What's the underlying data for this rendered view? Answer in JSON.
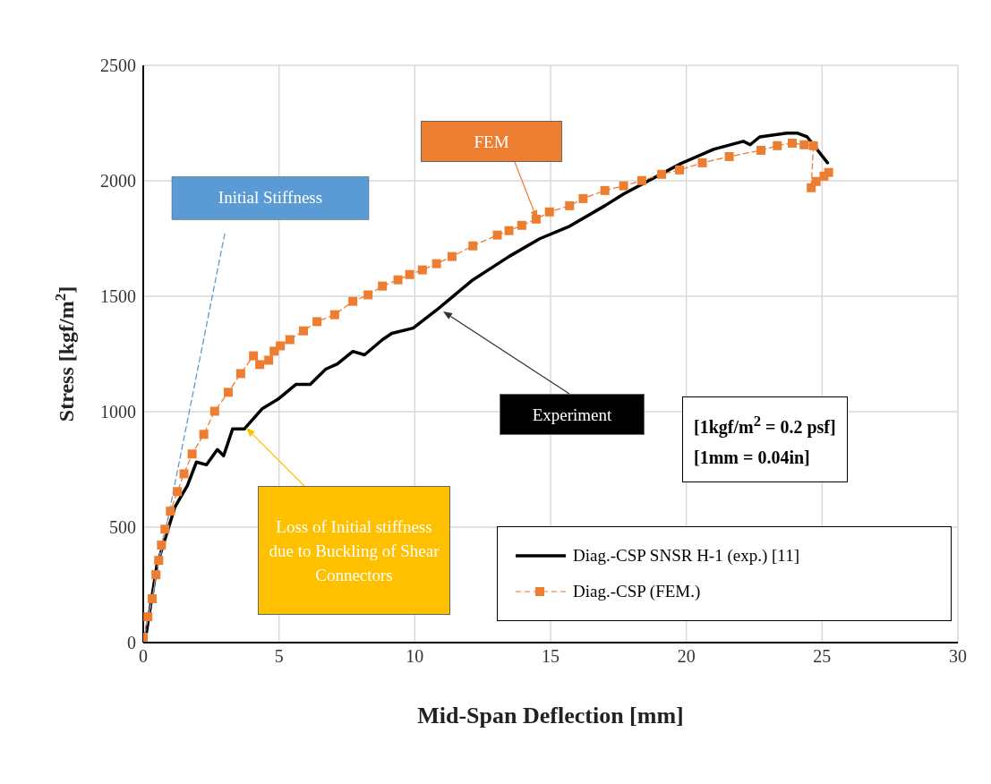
{
  "chart_data": {
    "type": "line",
    "xlabel": "Mid-Span Deflection [mm]",
    "ylabel": "Stress  [kgf/m$^{2}$]",
    "xlim": [
      0,
      30
    ],
    "xticks": [
      0,
      5,
      10,
      15,
      20,
      25,
      30
    ],
    "ylim": [
      0,
      2500
    ],
    "yticks": [
      0,
      500,
      1000,
      1500,
      2000,
      2500
    ],
    "grid": true,
    "legend": "bottom right",
    "series": [
      {
        "name": "Diag.-CSP SNSR H-1 (exp.) [11]",
        "color": "#000000",
        "marker": "none",
        "line_style": "solid",
        "x": [
          0,
          0.07,
          0.5,
          1.17,
          1.63,
          1.96,
          2.33,
          2.73,
          2.96,
          3.29,
          3.72,
          4.39,
          4.95,
          5.62,
          6.15,
          6.72,
          7.15,
          7.72,
          8.15,
          8.81,
          9.15,
          9.94,
          10.8,
          12.14,
          13.47,
          14.6,
          15.7,
          17.0,
          17.69,
          19.79,
          21.0,
          22.1,
          22.35,
          22.7,
          23.7,
          24.1,
          24.45,
          25.2
        ],
        "values": [
          0,
          8,
          333,
          588,
          681,
          782,
          770,
          836,
          809,
          925,
          925,
          1014,
          1053,
          1118,
          1118,
          1184,
          1207,
          1261,
          1246,
          1312,
          1339,
          1362,
          1440,
          1571,
          1672,
          1749,
          1803,
          1892,
          1943,
          2074,
          2136,
          2171,
          2156,
          2190,
          2206,
          2206,
          2190,
          2078
        ]
      },
      {
        "name": "Diag.-CSP (FEM.)",
        "color": "#ed7d31",
        "marker": "square",
        "line_style": "dashed",
        "x": [
          0,
          0.17,
          0.33,
          0.47,
          0.57,
          0.67,
          0.8,
          1.0,
          1.26,
          1.5,
          1.8,
          2.23,
          2.63,
          3.13,
          3.59,
          4.06,
          4.29,
          4.62,
          4.82,
          5.05,
          5.4,
          5.9,
          6.4,
          7.05,
          7.72,
          8.28,
          8.81,
          9.38,
          9.81,
          10.28,
          10.8,
          11.37,
          12.14,
          13.04,
          13.47,
          13.94,
          14.47,
          14.96,
          15.7,
          16.2,
          17.0,
          17.69,
          18.36,
          19.09,
          19.75,
          20.59,
          21.58,
          22.75,
          23.35,
          23.9,
          24.34,
          24.68,
          24.6,
          24.78,
          25.07,
          25.24
        ],
        "values": [
          23,
          112,
          190,
          294,
          356,
          422,
          491,
          569,
          654,
          731,
          817,
          902,
          1002,
          1084,
          1165,
          1242,
          1204,
          1223,
          1262,
          1285,
          1312,
          1350,
          1390,
          1420,
          1478,
          1506,
          1544,
          1571,
          1594,
          1614,
          1641,
          1672,
          1718,
          1765,
          1784,
          1807,
          1834,
          1865,
          1892,
          1923,
          1958,
          1978,
          2001,
          2028,
          2047,
          2078,
          2105,
          2132,
          2152,
          2163,
          2156,
          2152,
          1970,
          1997,
          2020,
          2036
        ]
      },
      {
        "color": "#5b9bd5",
        "marker": "none",
        "line_style": "dashed",
        "x": [
          0,
          3.0
        ],
        "values": [
          0,
          1770
        ]
      }
    ],
    "annotations": [
      {
        "text": "Initial Stiffness",
        "x": 3.0,
        "y": 1770
      },
      "FEM",
      "Experiment",
      "Loss of Initial stiffness due to Buckling of Shear Connectors",
      "[1kgf/m$^{2}$ = 0.2 psf]",
      "[1mm = 0.04in]"
    ]
  }
}
